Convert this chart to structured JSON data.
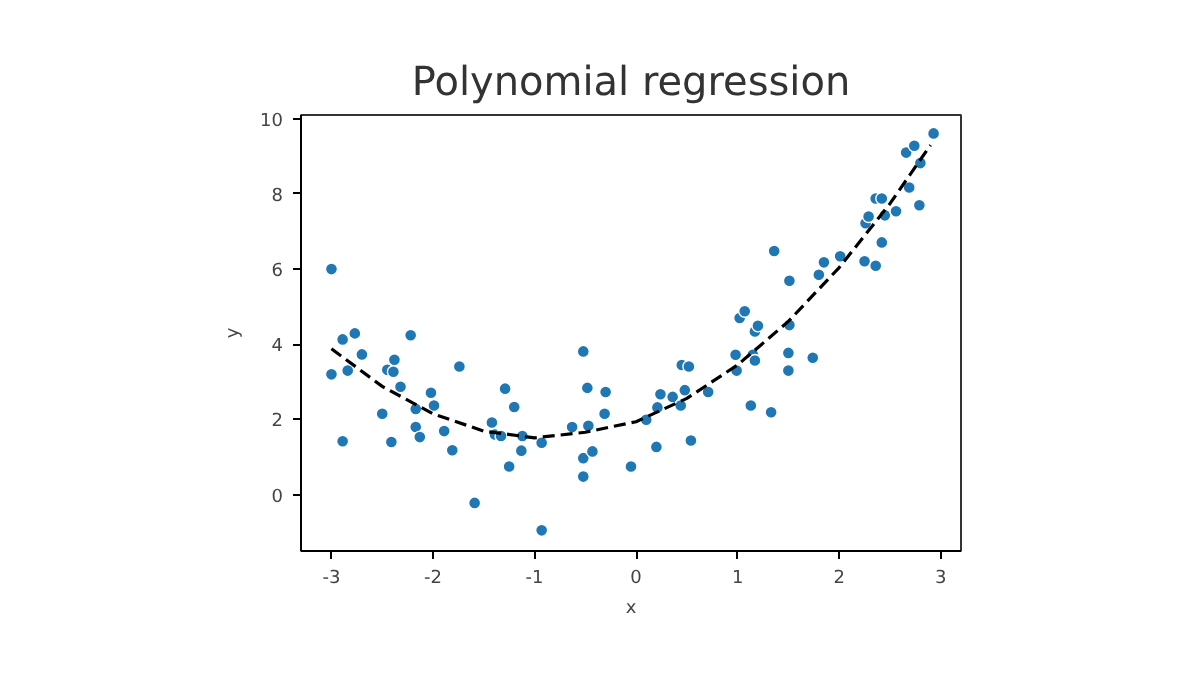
{
  "chart_data": {
    "type": "scatter",
    "title": "Polynomial regression",
    "xlabel": "x",
    "ylabel": "y",
    "xlim": [
      -3.3,
      3.2
    ],
    "ylim": [
      -1.5,
      10.1
    ],
    "xticks": [
      -3,
      -2,
      -1,
      0,
      1,
      2,
      3
    ],
    "yticks": [
      0,
      2,
      4,
      6,
      8,
      10
    ],
    "grid": false,
    "series": [
      {
        "color": "#1f77b4",
        "marker": "circle",
        "x": [
          -3.0,
          -3.0,
          -2.89,
          -2.84,
          -2.89,
          -2.77,
          -2.7,
          -2.5,
          -2.45,
          -2.38,
          -2.39,
          -2.41,
          -2.32,
          -2.22,
          -2.17,
          -2.17,
          -2.13,
          -2.02,
          -1.99,
          -1.89,
          -1.81,
          -1.74,
          -1.59,
          -1.42,
          -1.39,
          -1.33,
          -1.29,
          -1.25,
          -1.2,
          -1.13,
          -1.12,
          -0.93,
          -0.93,
          -0.63,
          -0.52,
          -0.48,
          -0.52,
          -0.52,
          -0.47,
          -0.43,
          -0.3,
          -0.31,
          -0.05,
          0.1,
          0.2,
          0.24,
          0.21,
          0.36,
          0.44,
          0.48,
          0.45,
          0.52,
          0.54,
          0.71,
          0.98,
          0.99,
          1.02,
          1.07,
          1.13,
          1.15,
          1.17,
          1.17,
          1.2,
          1.33,
          1.36,
          1.5,
          1.5,
          1.51,
          1.51,
          1.74,
          1.8,
          1.85,
          2.01,
          2.25,
          2.26,
          2.29,
          2.36,
          2.36,
          2.42,
          2.42,
          2.45,
          2.56,
          2.69,
          2.66,
          2.74,
          2.79,
          2.8,
          2.93
        ],
        "values": [
          6.0,
          3.2,
          4.13,
          3.3,
          1.42,
          4.29,
          3.73,
          2.15,
          3.32,
          3.59,
          3.27,
          1.4,
          2.87,
          4.24,
          2.28,
          1.8,
          1.53,
          2.71,
          2.37,
          1.69,
          1.18,
          3.41,
          -0.22,
          1.92,
          1.6,
          1.56,
          2.82,
          0.75,
          2.33,
          1.17,
          1.56,
          1.38,
          -0.95,
          1.8,
          3.81,
          2.84,
          0.97,
          0.48,
          1.83,
          1.15,
          2.73,
          2.15,
          0.75,
          1.99,
          1.27,
          2.67,
          2.32,
          2.6,
          2.37,
          2.78,
          3.45,
          3.41,
          1.44,
          2.73,
          3.72,
          3.3,
          4.7,
          4.88,
          2.37,
          3.72,
          3.57,
          4.34,
          4.49,
          2.19,
          6.48,
          3.77,
          3.3,
          4.51,
          5.69,
          3.64,
          5.85,
          6.18,
          6.34,
          6.21,
          7.22,
          7.4,
          6.09,
          7.88,
          7.88,
          6.71,
          7.43,
          7.54,
          8.17,
          9.1,
          9.28,
          7.7,
          8.82,
          9.61
        ]
      },
      {
        "type": "line",
        "color": "#000000",
        "line_style": "dashed",
        "x": [
          -3.0,
          -2.5,
          -2.0,
          -1.5,
          -1.0,
          -0.5,
          0.0,
          0.5,
          1.0,
          1.5,
          2.0,
          2.5,
          2.9
        ],
        "values": [
          3.88,
          2.88,
          2.15,
          1.69,
          1.51,
          1.66,
          1.94,
          2.56,
          3.45,
          4.61,
          6.04,
          7.74,
          9.3
        ]
      }
    ]
  }
}
